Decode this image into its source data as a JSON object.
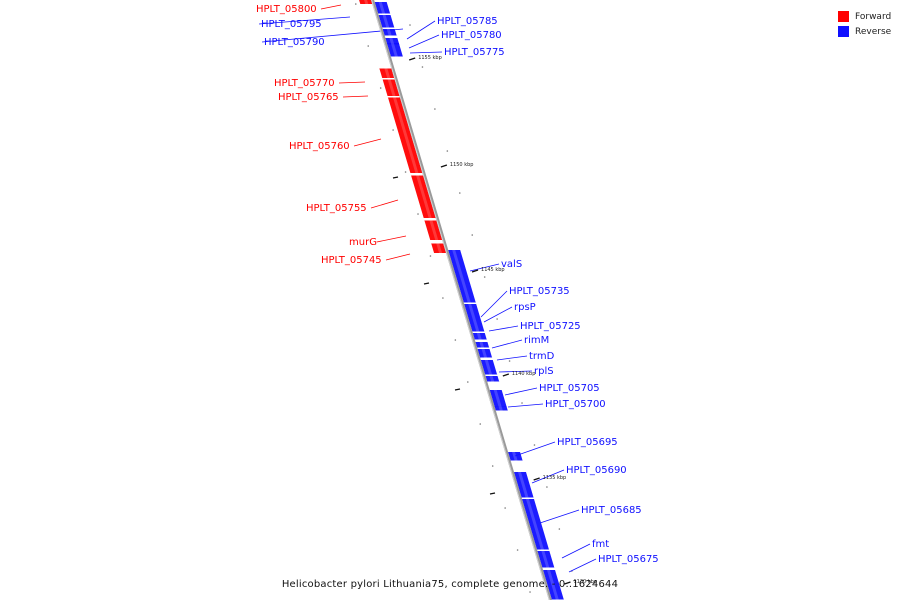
{
  "colors": {
    "forward": "#ff0000",
    "reverse": "#1010ff",
    "axis": "#999999"
  },
  "legend": {
    "forward_label": "Forward",
    "reverse_label": "Reverse"
  },
  "caption": "Helicobacter pylori Lithuania75, complete genome. - 0..1624644",
  "ticks": [
    "1155 kbp",
    "1150 kbp",
    "1145 kbp",
    "1140 kbp",
    "1135 kbp",
    "1130 kbp"
  ],
  "genes": [
    {
      "name": "HPLT_05800",
      "strand": "forward"
    },
    {
      "name": "HPLT_05795",
      "strand": "reverse"
    },
    {
      "name": "HPLT_05790",
      "strand": "reverse"
    },
    {
      "name": "HPLT_05785",
      "strand": "reverse"
    },
    {
      "name": "HPLT_05780",
      "strand": "reverse"
    },
    {
      "name": "HPLT_05775",
      "strand": "reverse"
    },
    {
      "name": "HPLT_05770",
      "strand": "forward"
    },
    {
      "name": "HPLT_05765",
      "strand": "forward"
    },
    {
      "name": "HPLT_05760",
      "strand": "forward"
    },
    {
      "name": "HPLT_05755",
      "strand": "forward"
    },
    {
      "name": "murG",
      "strand": "forward"
    },
    {
      "name": "HPLT_05745",
      "strand": "forward"
    },
    {
      "name": "valS",
      "strand": "reverse"
    },
    {
      "name": "HPLT_05735",
      "strand": "reverse"
    },
    {
      "name": "rpsP",
      "strand": "reverse"
    },
    {
      "name": "HPLT_05725",
      "strand": "reverse"
    },
    {
      "name": "rimM",
      "strand": "reverse"
    },
    {
      "name": "trmD",
      "strand": "reverse"
    },
    {
      "name": "rplS",
      "strand": "reverse"
    },
    {
      "name": "HPLT_05705",
      "strand": "reverse"
    },
    {
      "name": "HPLT_05700",
      "strand": "reverse"
    },
    {
      "name": "HPLT_05695",
      "strand": "reverse"
    },
    {
      "name": "HPLT_05690",
      "strand": "reverse"
    },
    {
      "name": "HPLT_05685",
      "strand": "reverse"
    },
    {
      "name": "fmt",
      "strand": "reverse"
    },
    {
      "name": "HPLT_05675",
      "strand": "reverse"
    }
  ]
}
